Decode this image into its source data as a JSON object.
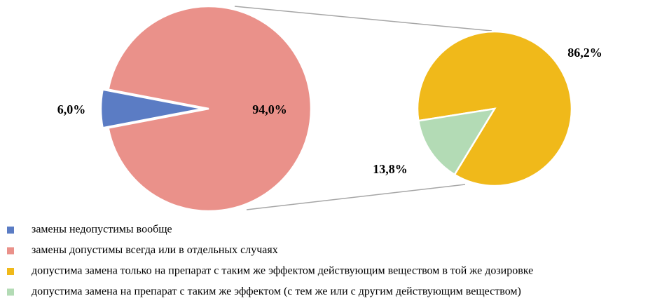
{
  "chart_data": [
    {
      "type": "pie",
      "values": [
        6.0,
        94.0
      ],
      "value_labels": [
        "6,0%",
        "94,0%"
      ],
      "labels": [
        "замены недопустимы вообще",
        "замены допустимы всегда или в отдельных случаях"
      ],
      "colors": [
        "#5b7cc4",
        "#ea918a"
      ]
    },
    {
      "type": "pie",
      "values": [
        86.2,
        13.8
      ],
      "value_labels": [
        "86,2%",
        "13,8%"
      ],
      "labels": [
        "допустима замена только на препарат с таким же эффектом действующим веществом в той же дозировке",
        "допустима замена на препарат с таким же эффектом (с тем же или с другим действующим веществом)"
      ],
      "colors": [
        "#f0b91a",
        "#b3dbb5"
      ]
    }
  ]
}
